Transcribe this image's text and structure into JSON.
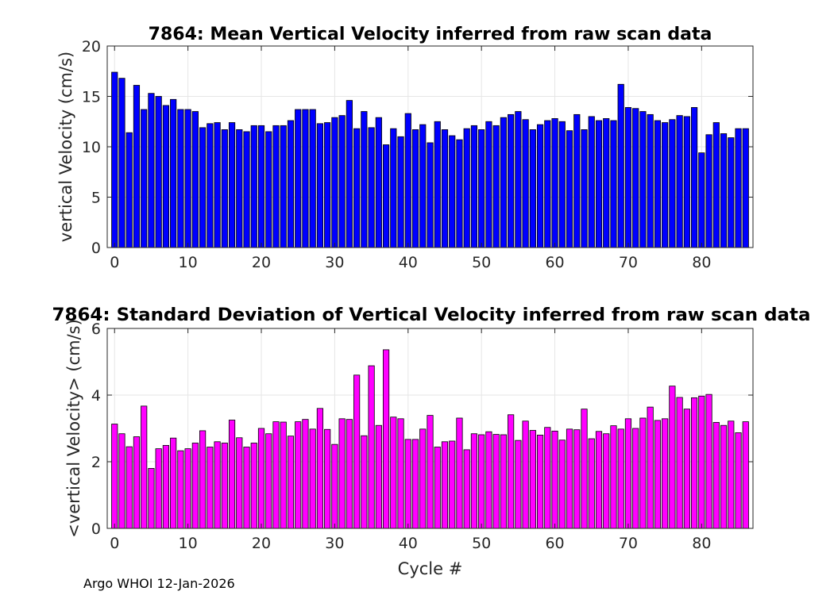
{
  "footer": "Argo WHOI 12-Jan-2026",
  "chart_data": [
    {
      "type": "bar",
      "title": "7864: Mean Vertical Velocity inferred from raw scan data",
      "xlabel": "",
      "ylabel": "vertical Velocity (cm/s)",
      "xlim": [
        -1,
        87
      ],
      "ylim": [
        0,
        20
      ],
      "xticks": [
        0,
        10,
        20,
        30,
        40,
        50,
        60,
        70,
        80
      ],
      "yticks": [
        0,
        5,
        10,
        15,
        20
      ],
      "grid": true,
      "bar_color": "#0000ff",
      "x": [
        0,
        1,
        2,
        3,
        4,
        5,
        6,
        7,
        8,
        9,
        10,
        11,
        12,
        13,
        14,
        15,
        16,
        17,
        18,
        19,
        20,
        21,
        22,
        23,
        24,
        25,
        26,
        27,
        28,
        29,
        30,
        31,
        32,
        33,
        34,
        35,
        36,
        37,
        38,
        39,
        40,
        41,
        42,
        43,
        44,
        45,
        46,
        47,
        48,
        49,
        50,
        51,
        52,
        53,
        54,
        55,
        56,
        57,
        58,
        59,
        60,
        61,
        62,
        63,
        64,
        65,
        66,
        67,
        68,
        69,
        70,
        71,
        72,
        73,
        74,
        75,
        76,
        77,
        78,
        79,
        80,
        81,
        82,
        83,
        84,
        85,
        86
      ],
      "values": [
        17.4,
        16.8,
        11.4,
        16.1,
        13.7,
        15.3,
        15.0,
        14.1,
        14.7,
        13.7,
        13.7,
        13.5,
        11.9,
        12.3,
        12.4,
        11.7,
        12.4,
        11.7,
        11.5,
        12.1,
        12.1,
        11.5,
        12.1,
        12.1,
        12.6,
        13.7,
        13.7,
        13.7,
        12.3,
        12.4,
        12.9,
        13.1,
        14.6,
        11.8,
        13.5,
        11.9,
        12.9,
        10.2,
        11.8,
        11.0,
        13.3,
        11.7,
        12.2,
        10.4,
        12.5,
        11.7,
        11.1,
        10.7,
        11.8,
        12.1,
        11.7,
        12.5,
        12.1,
        12.9,
        13.2,
        13.5,
        12.7,
        11.7,
        12.2,
        12.6,
        12.8,
        12.5,
        11.6,
        13.2,
        11.7,
        13.0,
        12.6,
        12.8,
        12.6,
        16.2,
        13.9,
        13.8,
        13.5,
        13.2,
        12.6,
        12.4,
        12.7,
        13.1,
        13.0,
        13.9,
        9.4,
        11.2,
        12.4,
        11.3,
        10.9,
        11.8,
        11.8
      ]
    },
    {
      "type": "bar",
      "title": "7864: Standard Deviation of Vertical Velocity inferred from raw scan data",
      "xlabel": "Cycle #",
      "ylabel": "<vertical Velocity> (cm/s)",
      "xlim": [
        -1,
        87
      ],
      "ylim": [
        0,
        6
      ],
      "xticks": [
        0,
        10,
        20,
        30,
        40,
        50,
        60,
        70,
        80
      ],
      "yticks": [
        0,
        2,
        4,
        6
      ],
      "grid": true,
      "bar_color": "#ff00ff",
      "x": [
        0,
        1,
        2,
        3,
        4,
        5,
        6,
        7,
        8,
        9,
        10,
        11,
        12,
        13,
        14,
        15,
        16,
        17,
        18,
        19,
        20,
        21,
        22,
        23,
        24,
        25,
        26,
        27,
        28,
        29,
        30,
        31,
        32,
        33,
        34,
        35,
        36,
        37,
        38,
        39,
        40,
        41,
        42,
        43,
        44,
        45,
        46,
        47,
        48,
        49,
        50,
        51,
        52,
        53,
        54,
        55,
        56,
        57,
        58,
        59,
        60,
        61,
        62,
        63,
        64,
        65,
        66,
        67,
        68,
        69,
        70,
        71,
        72,
        73,
        74,
        75,
        76,
        77,
        78,
        79,
        80,
        81,
        82,
        83,
        84,
        85,
        86
      ],
      "values": [
        3.13,
        2.84,
        2.45,
        2.75,
        3.67,
        1.8,
        2.39,
        2.49,
        2.71,
        2.33,
        2.39,
        2.56,
        2.93,
        2.44,
        2.6,
        2.56,
        3.25,
        2.72,
        2.44,
        2.56,
        3.0,
        2.84,
        3.2,
        3.19,
        2.77,
        3.2,
        3.27,
        2.98,
        3.6,
        2.97,
        2.52,
        3.29,
        3.27,
        4.6,
        2.78,
        4.88,
        3.09,
        5.36,
        3.34,
        3.29,
        2.67,
        2.67,
        2.98,
        3.39,
        2.44,
        2.6,
        2.62,
        3.31,
        2.36,
        2.84,
        2.81,
        2.9,
        2.82,
        2.81,
        3.41,
        2.64,
        3.22,
        2.94,
        2.8,
        3.03,
        2.92,
        2.65,
        2.98,
        2.96,
        3.58,
        2.69,
        2.91,
        2.84,
        3.08,
        2.98,
        3.29,
        3.0,
        3.31,
        3.64,
        3.24,
        3.29,
        4.27,
        3.93,
        3.58,
        3.92,
        3.97,
        4.02,
        3.18,
        3.09,
        3.22,
        2.87,
        3.2
      ]
    }
  ]
}
